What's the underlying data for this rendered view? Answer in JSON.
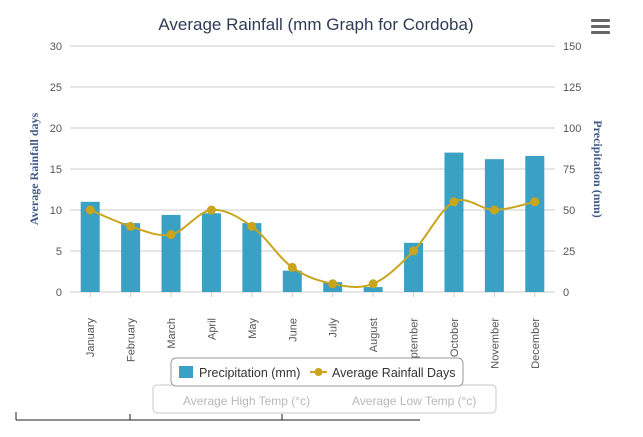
{
  "chart_data": {
    "type": "bar",
    "title": "Average Rainfall (mm Graph for Cordoba)",
    "categories": [
      "January",
      "February",
      "March",
      "April",
      "May",
      "June",
      "July",
      "August",
      "September",
      "October",
      "November",
      "December"
    ],
    "y_left": {
      "label": "Average Rainfall days",
      "range": [
        0,
        30
      ],
      "ticks": [
        "0",
        "5",
        "10",
        "15",
        "20",
        "25",
        "30"
      ]
    },
    "y_right": {
      "label": "Precipitation (mm)",
      "range": [
        0,
        150
      ],
      "ticks": [
        "0",
        "25",
        "50",
        "75",
        "100",
        "125",
        "150"
      ]
    },
    "grid": true,
    "legend_position": "bottom-center",
    "series": [
      {
        "name": "Precipitation (mm)",
        "type": "bar",
        "axis": "right",
        "color": "#3aa0c4",
        "values": [
          55,
          42,
          47,
          48,
          42,
          13,
          6,
          3,
          30,
          85,
          81,
          83
        ]
      },
      {
        "name": "Average Rainfall Days",
        "type": "line",
        "axis": "left",
        "color": "#c9a41d",
        "values": [
          10,
          8,
          7,
          10,
          8,
          3,
          1,
          1,
          5,
          11,
          10,
          11
        ]
      }
    ],
    "hidden_legend_row": [
      "Average High Temp (°c)",
      "Average Low Temp (°c)"
    ]
  },
  "menu_icon": "hamburger-menu-icon"
}
